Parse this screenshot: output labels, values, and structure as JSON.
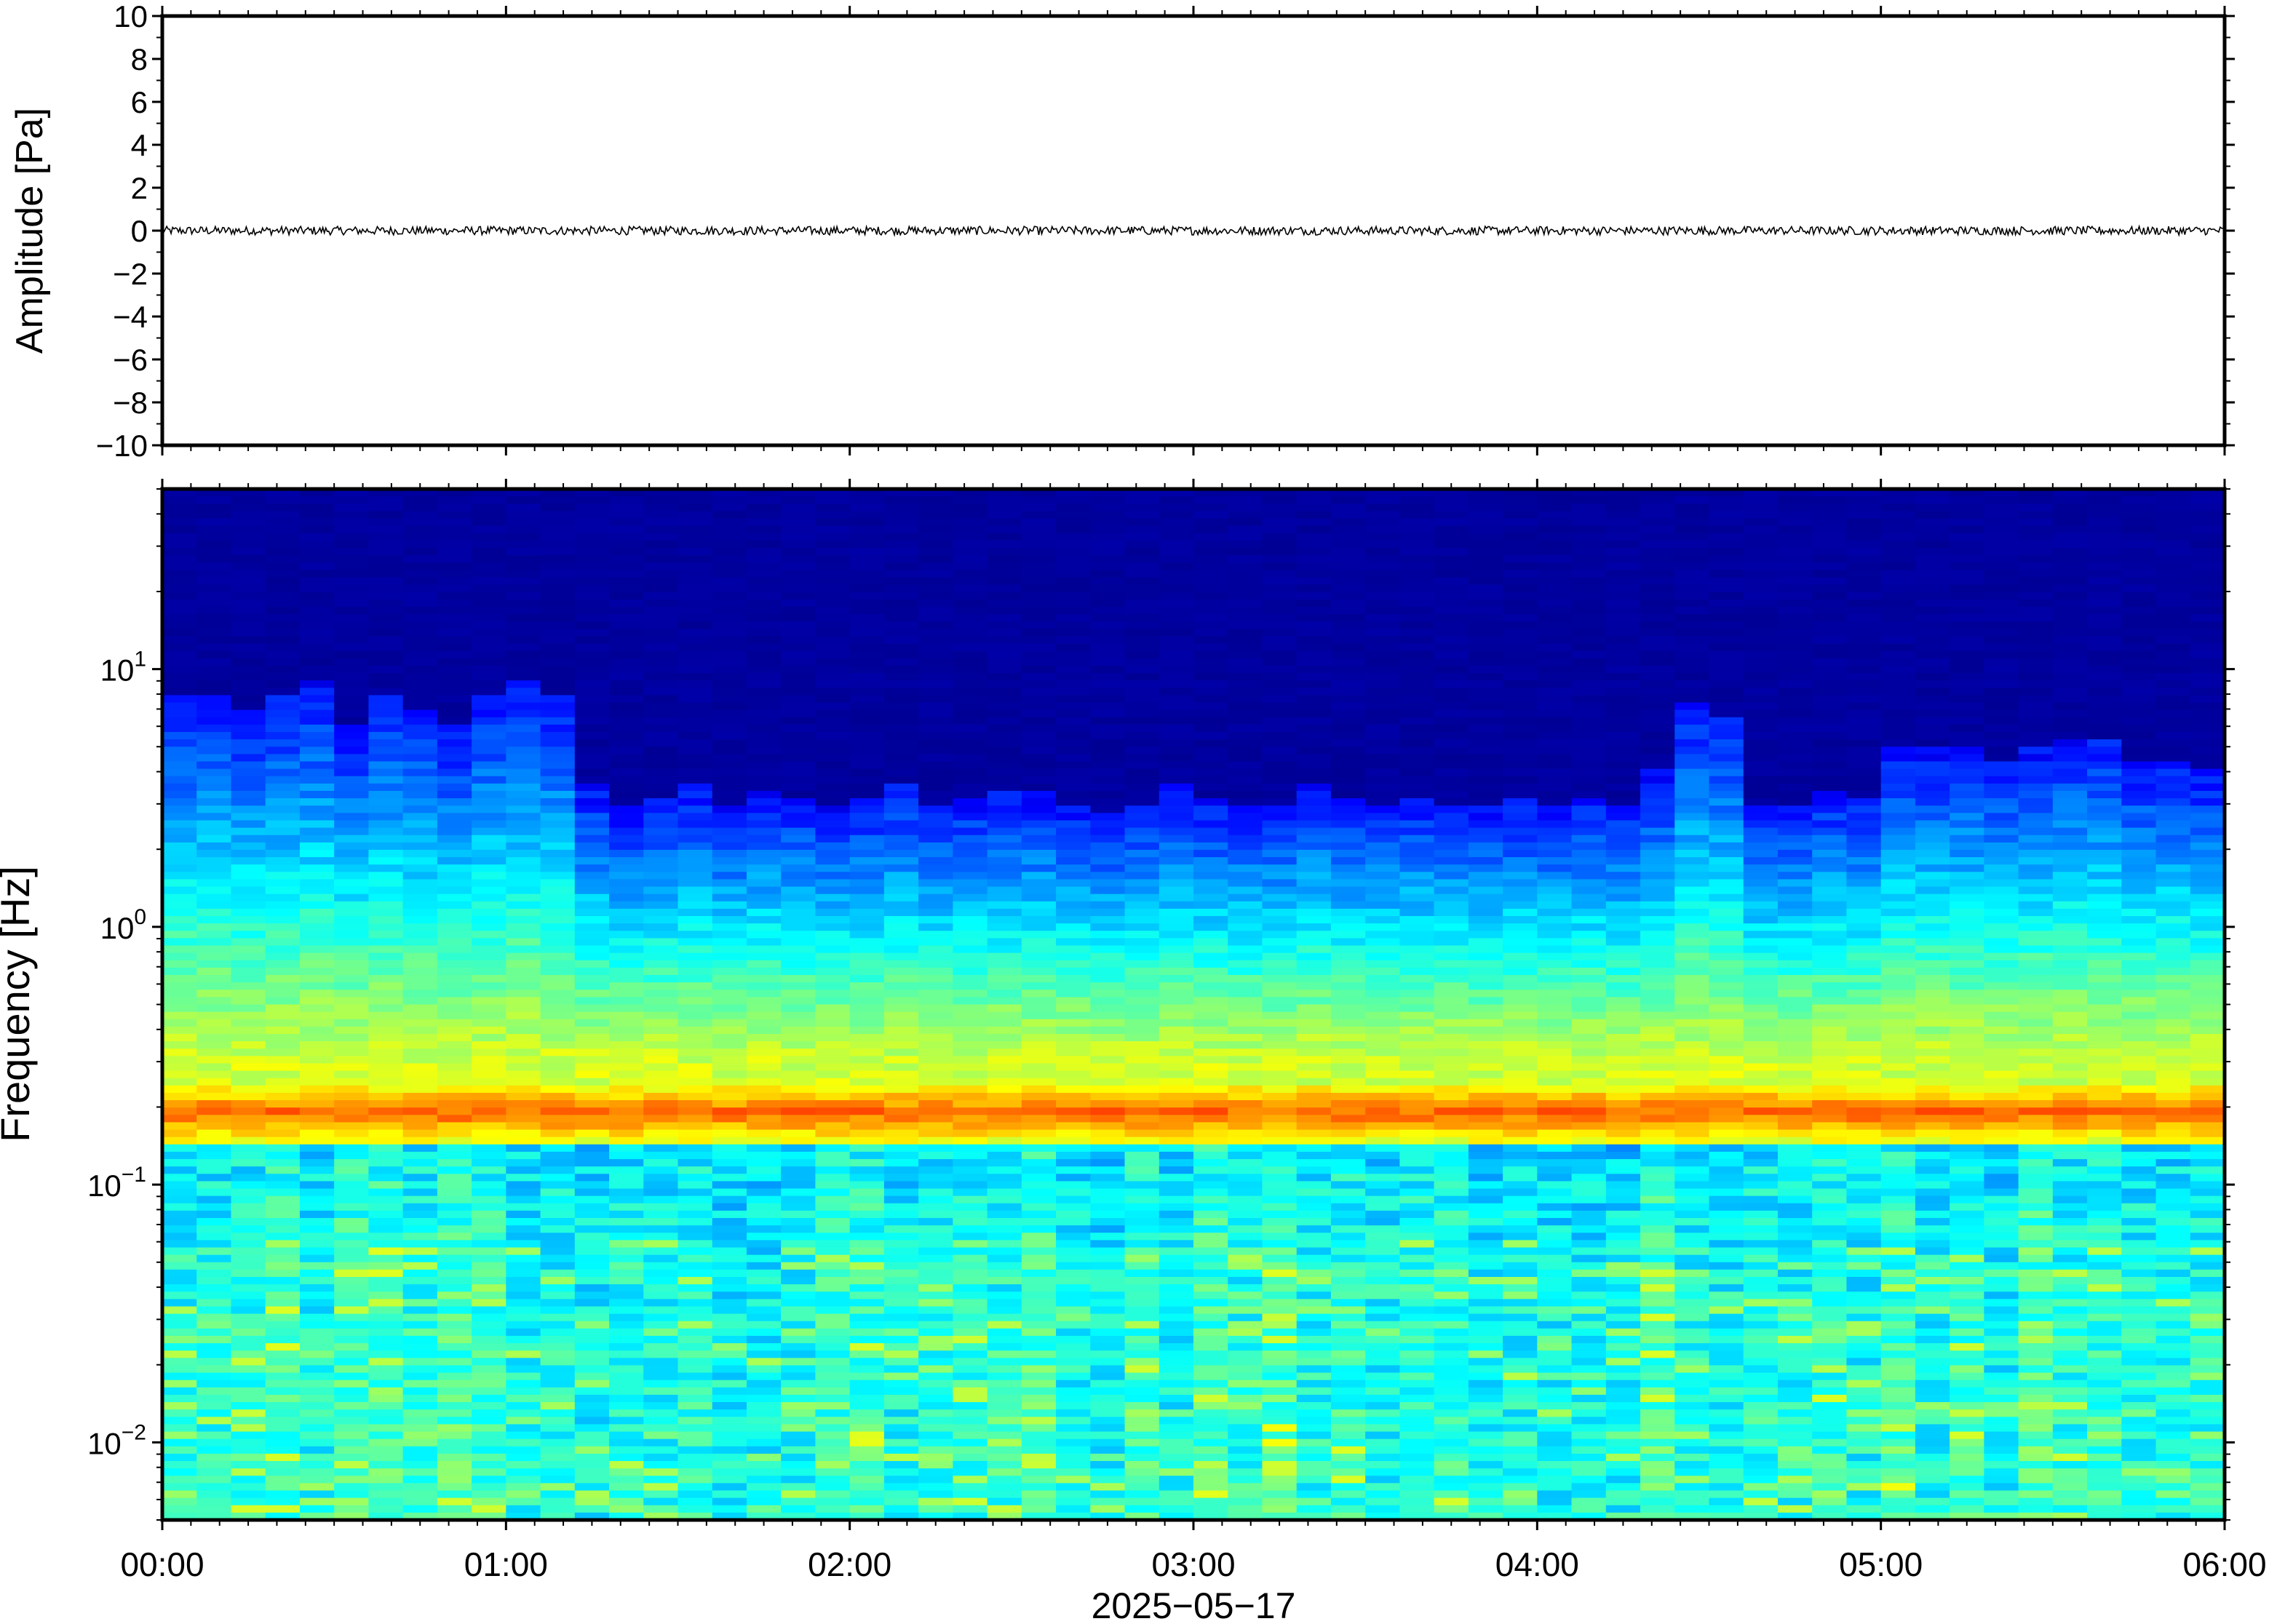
{
  "chart_data": [
    {
      "type": "line",
      "panel": "waveform",
      "ylabel": "Amplitude [Pa]",
      "ylim": [
        -10,
        10
      ],
      "yticks": [
        10,
        8,
        6,
        4,
        2,
        0,
        -2,
        -4,
        -6,
        -8,
        -10
      ],
      "ytick_labels": [
        "10",
        "8",
        "6",
        "4",
        "2",
        "0",
        "−2",
        "−4",
        "−6",
        "−8",
        "−10"
      ],
      "xlim": [
        "00:00",
        "06:00"
      ],
      "series": [
        {
          "description_values_pa": {
            "mean": 0.0,
            "approx_peak_abs": 0.2
          },
          "color": "#000000"
        }
      ],
      "grid": false
    },
    {
      "type": "heatmap",
      "panel": "spectrogram",
      "ylabel": "Frequency [Hz]",
      "yscale": "log",
      "ylim_hz": [
        0.005,
        50
      ],
      "yticks_hz": [
        0.01,
        0.1,
        1,
        10
      ],
      "ytick_labels": [
        {
          "base": "10",
          "exp": "−2"
        },
        {
          "base": "10",
          "exp": "−1"
        },
        {
          "base": "10",
          "exp": "0"
        },
        {
          "base": "10",
          "exp": "1"
        }
      ],
      "xlabel": "2025−05−17",
      "xticks": [
        "00:00",
        "01:00",
        "02:00",
        "03:00",
        "04:00",
        "05:00",
        "06:00"
      ],
      "xlim_hours": [
        0,
        6
      ],
      "colormap": "jet",
      "microseism_band_hz": 0.19,
      "time_columns": 60,
      "upper_edge_hz_by_column": [
        8,
        8,
        7,
        8,
        9,
        6,
        8,
        7,
        6,
        8,
        9,
        8,
        3.5,
        3.0,
        3.2,
        3.5,
        3.0,
        3.4,
        3.2,
        3.0,
        3.2,
        3.5,
        3.0,
        3.2,
        3.4,
        3.3,
        3.0,
        2.8,
        3.0,
        3.5,
        3.2,
        3.0,
        3.0,
        3.5,
        3.2,
        3.0,
        3.2,
        3.0,
        3.0,
        3.2,
        3.0,
        3.2,
        3.0,
        4.0,
        7.5,
        6.5,
        3.0,
        3.0,
        3.4,
        3.2,
        5.0,
        5.0,
        5.0,
        4.5,
        5.0,
        5.5,
        5.5,
        4.5,
        4.5,
        4.0
      ]
    }
  ]
}
